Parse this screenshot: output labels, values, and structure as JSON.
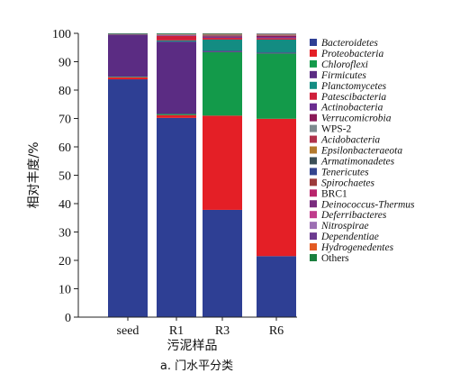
{
  "chart_data": {
    "type": "bar",
    "stacked": true,
    "categories": [
      "seed",
      "R1",
      "R3",
      "R6"
    ],
    "xlabel": "污泥样品",
    "ylabel": "相对丰度/%",
    "caption": "a. 门水平分类",
    "ylim": [
      0,
      100
    ],
    "yticks": [
      0,
      10,
      20,
      30,
      40,
      50,
      60,
      70,
      80,
      90,
      100
    ],
    "grid": false,
    "legend_position": "right",
    "series": [
      {
        "name": "Bacteroidetes",
        "color": "#2e3f94",
        "italic": true,
        "values": [
          83.8,
          70.2,
          37.8,
          21.5
        ]
      },
      {
        "name": "Proteobacteria",
        "color": "#e41f26",
        "italic": true,
        "values": [
          0.7,
          1.0,
          33.2,
          48.4
        ]
      },
      {
        "name": "Chloroflexi",
        "color": "#139a4a",
        "italic": true,
        "values": [
          0.2,
          0.4,
          22.4,
          23.0
        ]
      },
      {
        "name": "Firmicutes",
        "color": "#5b2c83",
        "italic": true,
        "values": [
          14.8,
          25.5,
          0.4,
          0.3
        ]
      },
      {
        "name": "Planctomycetes",
        "color": "#138c82",
        "italic": true,
        "values": [
          0.1,
          0.4,
          4.0,
          4.6
        ]
      },
      {
        "name": "Patescibacteria",
        "color": "#cf1f3a",
        "italic": true,
        "values": [
          0.1,
          1.6,
          0.6,
          0.5
        ]
      },
      {
        "name": "Actinobacteria",
        "color": "#6a2c8f",
        "italic": true,
        "values": [
          0.1,
          0.2,
          0.3,
          0.4
        ]
      },
      {
        "name": "Verrucomicrobia",
        "color": "#8a1a58",
        "italic": true,
        "values": [
          0.0,
          0.1,
          0.3,
          0.4
        ]
      },
      {
        "name": "WPS-2",
        "color": "#7d8a8e",
        "italic": false,
        "values": [
          0.0,
          0.1,
          0.2,
          0.1
        ]
      },
      {
        "name": "Acidobacteria",
        "color": "#b0324b",
        "italic": true,
        "values": [
          0.0,
          0.1,
          0.2,
          0.2
        ]
      },
      {
        "name": "Epsilonbacteraeota",
        "color": "#b37a2e",
        "italic": true,
        "values": [
          0.0,
          0.1,
          0.1,
          0.1
        ]
      },
      {
        "name": "Armatimonadetes",
        "color": "#3b4f57",
        "italic": true,
        "values": [
          0.0,
          0.0,
          0.1,
          0.1
        ]
      },
      {
        "name": "Tenericutes",
        "color": "#34458f",
        "italic": true,
        "values": [
          0.0,
          0.1,
          0.0,
          0.0
        ]
      },
      {
        "name": "Spirochaetes",
        "color": "#9c3b3b",
        "italic": true,
        "values": [
          0.0,
          0.0,
          0.1,
          0.1
        ]
      },
      {
        "name": "BRC1",
        "color": "#b8246b",
        "italic": false,
        "values": [
          0.0,
          0.0,
          0.1,
          0.0
        ]
      },
      {
        "name": "Deinococcus-Thermus",
        "color": "#7a2c7e",
        "italic": true,
        "values": [
          0.0,
          0.0,
          0.0,
          0.1
        ]
      },
      {
        "name": "Deferribacteres",
        "color": "#c03c8c",
        "italic": true,
        "values": [
          0.0,
          0.0,
          0.0,
          0.0
        ]
      },
      {
        "name": "Nitrospirae",
        "color": "#9c6fb3",
        "italic": true,
        "values": [
          0.0,
          0.0,
          0.0,
          0.1
        ]
      },
      {
        "name": "Dependentiae",
        "color": "#6c3b8f",
        "italic": true,
        "values": [
          0.0,
          0.0,
          0.0,
          0.0
        ]
      },
      {
        "name": "Hydrogenedentes",
        "color": "#e35a22",
        "italic": true,
        "values": [
          0.0,
          0.0,
          0.0,
          0.0
        ]
      },
      {
        "name": "Others",
        "color": "#1b7f3e",
        "italic": false,
        "values": [
          0.2,
          0.2,
          0.2,
          0.1
        ]
      }
    ]
  }
}
